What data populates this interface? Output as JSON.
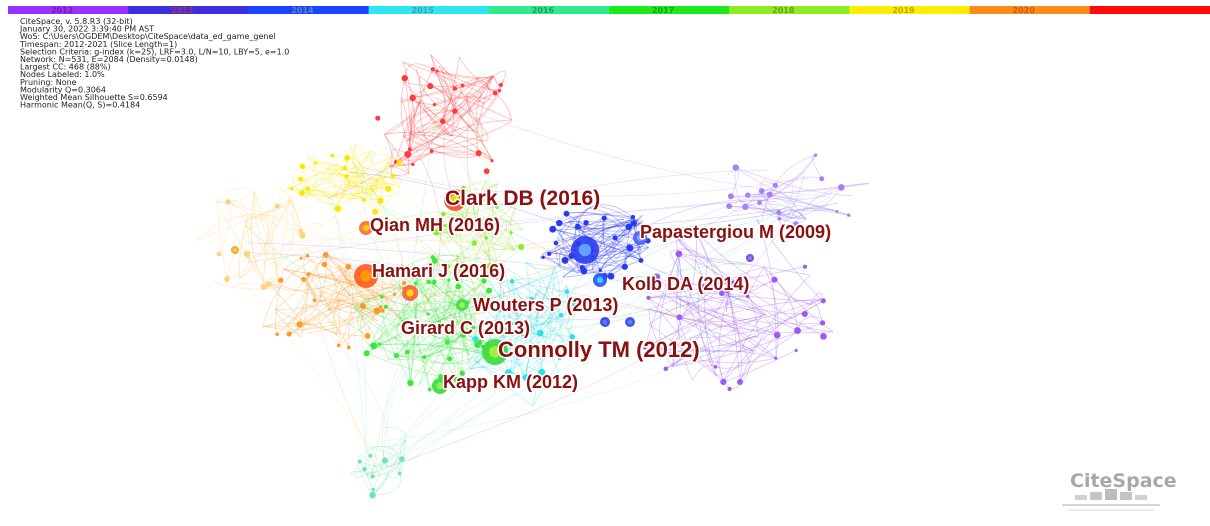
{
  "timeline": {
    "segments": [
      {
        "label": "2012",
        "color": "#9b30ff",
        "text_color": "#6a1fb0"
      },
      {
        "label": "2013",
        "color": "#3b2fe0",
        "text_color": "#b03050"
      },
      {
        "label": "2014",
        "color": "#1846ff",
        "text_color": "#6080c0"
      },
      {
        "label": "2015",
        "color": "#2ee6f2",
        "text_color": "#40a0a8"
      },
      {
        "label": "2016",
        "color": "#30ea8c",
        "text_color": "#20a060"
      },
      {
        "label": "2017",
        "color": "#1ee81e",
        "text_color": "#14a014"
      },
      {
        "label": "2018",
        "color": "#8cee22",
        "text_color": "#6aa018"
      },
      {
        "label": "2019",
        "color": "#ffec00",
        "text_color": "#c0a000"
      },
      {
        "label": "2020",
        "color": "#ff8c1a",
        "text_color": "#c06010"
      },
      {
        "color": "#ff0a0a"
      }
    ]
  },
  "info": [
    "CiteSpace, v. 5.8.R3 (32-bit)",
    "January 30, 2022 3:39:40 PM AST",
    "WoS: C:\\Users\\OGDEM\\Desktop\\CiteSpace\\data_ed_game_genel",
    "Timespan: 2012-2021 (Slice Length=1)",
    "Selection Criteria: g-index (k=25), LRF=3.0, L/N=10, LBY=5, e=1.0",
    "Network: N=531, E=2084 (Density=0.0148)",
    "Largest CC: 468 (88%)",
    "Nodes Labeled: 1.0%",
    "Pruning: None",
    "Modularity Q=0.3064",
    "Weighted Mean Silhouette S=0.6594",
    "Harmonic Mean(Q, S)=0.4184"
  ],
  "nodes": [
    {
      "label": "Clark DB (2016)"
    },
    {
      "label": "Qian MH (2016)"
    },
    {
      "label": "Papastergiou M (2009)"
    },
    {
      "label": "Hamari J (2016)"
    },
    {
      "label": "Kolb DA (2014)"
    },
    {
      "label": "Wouters P (2013)"
    },
    {
      "label": "Girard C (2013)"
    },
    {
      "label": "Connolly TM (2012)"
    },
    {
      "label": "Kapp KM (2012)"
    }
  ],
  "logo": "CiteSpace"
}
